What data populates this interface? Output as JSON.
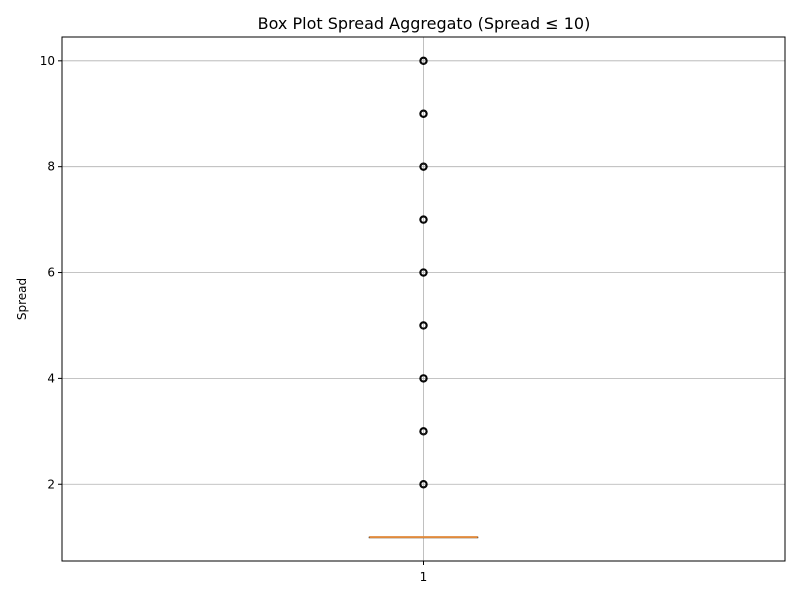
{
  "chart_data": {
    "type": "box",
    "title": "Box Plot Spread Aggregato (Spread ≤ 10)",
    "xlabel": "",
    "ylabel": "Spread",
    "categories": [
      "1"
    ],
    "ylim": [
      0.55,
      10.45
    ],
    "yticks": [
      2,
      4,
      6,
      8,
      10
    ],
    "grid": true,
    "boxes": [
      {
        "category": "1",
        "q1": 1,
        "median": 1,
        "q3": 1,
        "whisker_low": 1,
        "whisker_high": 1,
        "outliers": [
          2,
          3,
          4,
          5,
          6,
          7,
          8,
          9,
          10
        ]
      }
    ],
    "colors": {
      "median": "#e08a3c",
      "box": "#000000",
      "outlier_edge": "#000000",
      "grid": "#b0b0b0"
    }
  }
}
